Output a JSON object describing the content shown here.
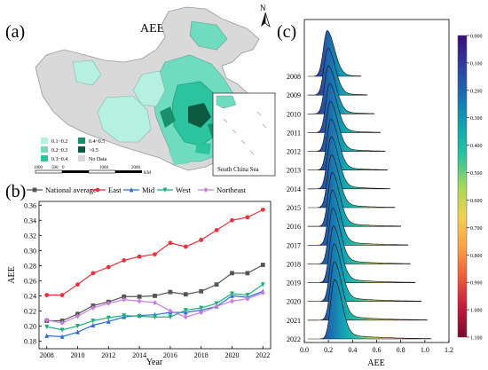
{
  "panels": {
    "a": {
      "label": "(a)",
      "title": "AEE",
      "north": "N",
      "inset_label": "South China Sea",
      "legend": {
        "items": [
          {
            "label": "0.1~0.2",
            "color": "#b6f0e0"
          },
          {
            "label": "0.2~0.3",
            "color": "#6fdcc0"
          },
          {
            "label": "0.3~0.4",
            "color": "#2cc39f"
          },
          {
            "label": "0.4~0.5",
            "color": "#1a8f6b"
          },
          {
            "label": ">0.5",
            "color": "#0c5b40"
          },
          {
            "label": "No Data",
            "color": "#d9d9d9"
          }
        ]
      },
      "scale": {
        "ticks": [
          "1000",
          "500",
          "0",
          "1000",
          "2000"
        ],
        "unit": "KM"
      }
    },
    "b": {
      "label": "(b)"
    },
    "c": {
      "label": "(c)"
    }
  },
  "chart_data": [
    {
      "type": "line",
      "panel": "b",
      "xlabel": "Year",
      "ylabel": "AEE",
      "xlim": [
        2007.5,
        2022.5
      ],
      "ylim": [
        0.17,
        0.365
      ],
      "x": [
        2008,
        2009,
        2010,
        2011,
        2012,
        2013,
        2014,
        2015,
        2016,
        2017,
        2018,
        2019,
        2020,
        2021,
        2022
      ],
      "xticks": [
        "2008",
        "2010",
        "2012",
        "2014",
        "2016",
        "2018",
        "2020",
        "2022"
      ],
      "yticks": [
        "0.18",
        "0.20",
        "0.22",
        "0.24",
        "0.26",
        "0.28",
        "0.30",
        "0.32",
        "0.34",
        "0.36"
      ],
      "legend_position": "top",
      "series": [
        {
          "name": "National average",
          "color": "#555555",
          "marker": "square",
          "values": [
            0.207,
            0.207,
            0.216,
            0.227,
            0.232,
            0.239,
            0.239,
            0.24,
            0.245,
            0.242,
            0.246,
            0.255,
            0.27,
            0.27,
            0.281
          ]
        },
        {
          "name": "East",
          "color": "#e8323c",
          "marker": "circle",
          "values": [
            0.241,
            0.241,
            0.255,
            0.27,
            0.278,
            0.287,
            0.292,
            0.295,
            0.31,
            0.305,
            0.314,
            0.327,
            0.34,
            0.344,
            0.354
          ]
        },
        {
          "name": "Mid",
          "color": "#2f6fd1",
          "marker": "triangle-up",
          "values": [
            0.187,
            0.186,
            0.192,
            0.201,
            0.206,
            0.212,
            0.214,
            0.215,
            0.218,
            0.218,
            0.221,
            0.226,
            0.24,
            0.238,
            0.246
          ]
        },
        {
          "name": "West",
          "color": "#1fae7a",
          "marker": "triangle-down",
          "values": [
            0.199,
            0.195,
            0.2,
            0.207,
            0.211,
            0.214,
            0.213,
            0.212,
            0.212,
            0.221,
            0.224,
            0.23,
            0.243,
            0.241,
            0.255
          ]
        },
        {
          "name": "Northeast",
          "color": "#c77ee0",
          "marker": "diamond",
          "values": [
            0.208,
            0.204,
            0.213,
            0.224,
            0.23,
            0.235,
            0.233,
            0.231,
            0.22,
            0.212,
            0.218,
            0.226,
            0.233,
            0.236,
            0.244
          ]
        }
      ]
    },
    {
      "type": "area",
      "subtype": "ridgeline",
      "panel": "c",
      "xlabel": "AEE",
      "xlim": [
        0.0,
        1.2
      ],
      "xticks": [
        "0.0",
        "0.2",
        "0.4",
        "0.6",
        "0.8",
        "1.0",
        "1.2"
      ],
      "years": [
        "2008",
        "2009",
        "2010",
        "2011",
        "2012",
        "2013",
        "2014",
        "2015",
        "2016",
        "2017",
        "2018",
        "2019",
        "2020",
        "2021",
        "2022"
      ],
      "peaks": [
        0.19,
        0.195,
        0.2,
        0.21,
        0.215,
        0.22,
        0.222,
        0.225,
        0.23,
        0.232,
        0.235,
        0.24,
        0.245,
        0.248,
        0.25
      ],
      "tail_extent": [
        0.47,
        0.52,
        0.58,
        0.63,
        0.67,
        0.69,
        0.71,
        0.75,
        0.8,
        0.86,
        0.88,
        0.92,
        0.97,
        1.02,
        1.05
      ],
      "colorbar": {
        "range": [
          0.0,
          1.1
        ],
        "ticks": [
          "0.000",
          "0.100",
          "0.200",
          "0.300",
          "0.400",
          "0.500",
          "0.600",
          "0.700",
          "0.800",
          "0.900",
          "1.000",
          "1.100"
        ],
        "colors": [
          "#3b0f70",
          "#2f3f9c",
          "#1b6fb0",
          "#13a3b3",
          "#2cc39f",
          "#a4d65e",
          "#f1d14f",
          "#f7a24a",
          "#ee5d3d",
          "#c5193b",
          "#7a0b2d"
        ]
      }
    }
  ]
}
